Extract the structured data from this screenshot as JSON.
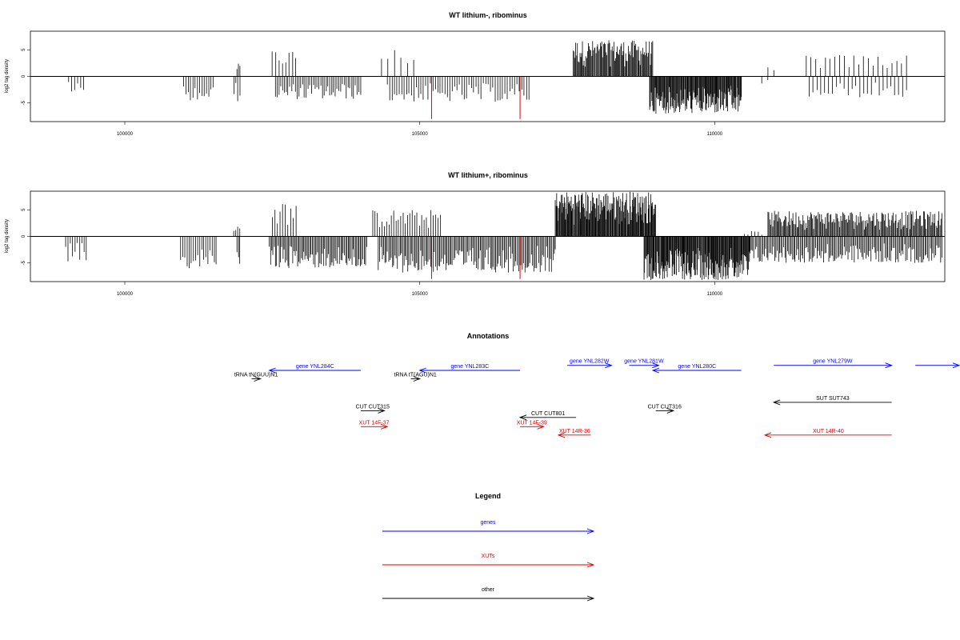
{
  "chart_data": [
    {
      "type": "bar",
      "title": "WT lithium-, ribominus",
      "ylabel": "log2 tag density",
      "xlim": [
        98400,
        113900
      ],
      "ylim": [
        -8.5,
        8.5
      ],
      "x_ticks": [
        100000,
        105000,
        110000
      ],
      "y_ticks": [
        -5,
        0,
        5
      ],
      "x_tick_labels": [
        "100000",
        "105000",
        "110000"
      ],
      "y_tick_labels": [
        "-5",
        "0",
        "5"
      ],
      "baseline": [
        98400,
        113900
      ],
      "highlight_color": "#e00000",
      "positive_regions": [
        {
          "x0": 101900,
          "x1": 101950,
          "peak": 2.4,
          "n": 3
        },
        {
          "x0": 102500,
          "x1": 102900,
          "peak": 5.0,
          "n": 8
        },
        {
          "x0": 104350,
          "x1": 104900,
          "peak": 5.3,
          "n": 6
        },
        {
          "x0": 107600,
          "x1": 108950,
          "peak": 6.8,
          "n": 95
        },
        {
          "x0": 110900,
          "x1": 111000,
          "peak": 1.7,
          "n": 2
        },
        {
          "x0": 111550,
          "x1": 113250,
          "peak": 4.1,
          "n": 22
        }
      ],
      "negative_regions": [
        {
          "x0": 99050,
          "x1": 99300,
          "peak": -3.2,
          "n": 6
        },
        {
          "x0": 101000,
          "x1": 101500,
          "peak": -4.5,
          "n": 14
        },
        {
          "x0": 101850,
          "x1": 101950,
          "peak": -4.7,
          "n": 4
        },
        {
          "x0": 102550,
          "x1": 104000,
          "peak": -4.3,
          "n": 48
        },
        {
          "x0": 104450,
          "x1": 106850,
          "peak": -4.8,
          "n": 60
        },
        {
          "x0": 108900,
          "x1": 110450,
          "peak": -7.0,
          "n": 140
        },
        {
          "x0": 110800,
          "x1": 110900,
          "peak": -2.0,
          "n": 2
        },
        {
          "x0": 111600,
          "x1": 113250,
          "peak": -4.0,
          "n": 26
        }
      ],
      "highlight_bars": [
        {
          "x": 105200,
          "y": -8.0
        },
        {
          "x": 106700,
          "y": -8.0
        }
      ]
    },
    {
      "type": "bar",
      "title": "WT lithium+, ribominus",
      "ylabel": "log2 tag density",
      "xlim": [
        98400,
        113900
      ],
      "ylim": [
        -8.5,
        8.5
      ],
      "x_ticks": [
        100000,
        105000,
        110000
      ],
      "y_ticks": [
        -5,
        0,
        5
      ],
      "x_tick_labels": [
        "100000",
        "105000",
        "110000"
      ],
      "y_tick_labels": [
        "-5",
        "0",
        "5"
      ],
      "baseline": [
        98400,
        113900
      ],
      "highlight_color": "#e00000",
      "positive_regions": [
        {
          "x0": 101850,
          "x1": 101950,
          "peak": 2.5,
          "n": 4
        },
        {
          "x0": 102500,
          "x1": 102900,
          "peak": 6.5,
          "n": 10
        },
        {
          "x0": 104200,
          "x1": 105350,
          "peak": 5.0,
          "n": 30
        },
        {
          "x0": 107300,
          "x1": 109000,
          "peak": 8.5,
          "n": 160
        },
        {
          "x0": 110500,
          "x1": 110800,
          "peak": 1.0,
          "n": 6
        },
        {
          "x0": 110900,
          "x1": 113850,
          "peak": 4.8,
          "n": 180
        }
      ],
      "negative_regions": [
        {
          "x0": 99000,
          "x1": 99350,
          "peak": -4.8,
          "n": 10
        },
        {
          "x0": 100950,
          "x1": 101550,
          "peak": -6.2,
          "n": 18
        },
        {
          "x0": 101900,
          "x1": 101950,
          "peak": -5.3,
          "n": 3
        },
        {
          "x0": 102450,
          "x1": 104100,
          "peak": -6.0,
          "n": 80
        },
        {
          "x0": 104300,
          "x1": 107300,
          "peak": -6.8,
          "n": 140
        },
        {
          "x0": 108800,
          "x1": 110600,
          "peak": -8.2,
          "n": 170
        },
        {
          "x0": 110600,
          "x1": 113850,
          "peak": -5.0,
          "n": 150
        }
      ],
      "highlight_bars": [
        {
          "x": 105200,
          "y": -8.0
        },
        {
          "x": 106700,
          "y": -8.0
        }
      ]
    },
    {
      "type": "diagram",
      "title": "Annotations",
      "xlim": [
        98400,
        113900
      ],
      "tracks": [
        {
          "label": "gene YNL284C",
          "start": 104000,
          "end": 102450,
          "row": 0,
          "color": "#0000ff"
        },
        {
          "label": "gene YNL283C",
          "start": 106700,
          "end": 105000,
          "row": 0,
          "color": "#0000ff"
        },
        {
          "label": "gene YNL282W",
          "start": 107500,
          "end": 108250,
          "row": -0.6,
          "color": "#0000ff"
        },
        {
          "label": "gene YNL281W",
          "start": 108550,
          "end": 109050,
          "row": -0.6,
          "color": "#0000ff"
        },
        {
          "label": "gene YNL280C",
          "start": 110450,
          "end": 108950,
          "row": 0,
          "color": "#0000ff"
        },
        {
          "label": "gene YNL279W",
          "start": 111000,
          "end": 113000,
          "row": -0.6,
          "color": "#0000ff"
        },
        {
          "label": "",
          "start": 113400,
          "end": 114200,
          "row": -0.6,
          "color": "#0000ff"
        },
        {
          "label": "tRNA tN(GUU)N1",
          "start": 102150,
          "end": 102300,
          "row": 1,
          "color": "#000000"
        },
        {
          "label": "tRNA tT(AGU)N1",
          "start": 104850,
          "end": 105000,
          "row": 1,
          "color": "#000000"
        },
        {
          "label": "SUT SUT743",
          "start": 113000,
          "end": 111000,
          "row": 3.8,
          "color": "#000000"
        },
        {
          "label": "CUT CUT315",
          "start": 104000,
          "end": 104400,
          "row": 4.8,
          "color": "#000000"
        },
        {
          "label": "CUT CUT801",
          "start": 107650,
          "end": 106700,
          "row": 5.6,
          "color": "#000000"
        },
        {
          "label": "CUT CUT316",
          "start": 109000,
          "end": 109300,
          "row": 4.8,
          "color": "#000000"
        },
        {
          "label": "XUT 14F-37",
          "start": 104000,
          "end": 104450,
          "row": 6.7,
          "color": "#e00000"
        },
        {
          "label": "XUT 14F-39",
          "start": 106700,
          "end": 107100,
          "row": 6.7,
          "color": "#e00000"
        },
        {
          "label": "XUT 14R-36",
          "start": 107900,
          "end": 107350,
          "row": 7.7,
          "color": "#e00000"
        },
        {
          "label": "XUT 14R-40",
          "start": 113000,
          "end": 110850,
          "row": 7.7,
          "color": "#e00000"
        }
      ]
    }
  ],
  "legend": {
    "title": "Legend",
    "items": [
      {
        "label": "genes",
        "color": "#0000ff"
      },
      {
        "label": "XUTs",
        "color": "#e00000"
      },
      {
        "label": "other",
        "color": "#000000"
      }
    ]
  }
}
